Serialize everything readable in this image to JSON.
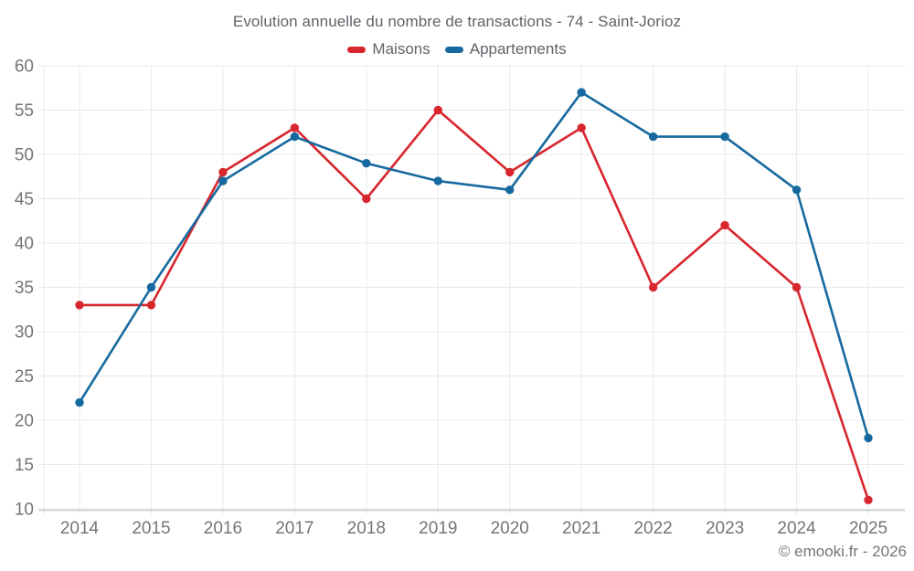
{
  "chart_data": {
    "type": "line",
    "title": "Evolution annuelle du nombre de transactions - 74 - Saint-Jorioz",
    "categories": [
      "2014",
      "2015",
      "2016",
      "2017",
      "2018",
      "2019",
      "2020",
      "2021",
      "2022",
      "2023",
      "2024",
      "2025"
    ],
    "series": [
      {
        "name": "Maisons",
        "color": "#d8262d",
        "values": [
          33,
          33,
          48,
          53,
          45,
          55,
          48,
          53,
          35,
          42,
          35,
          11
        ]
      },
      {
        "name": "Appartements",
        "color": "#16699f",
        "values": [
          22,
          35,
          47,
          52,
          49,
          47,
          46,
          57,
          52,
          52,
          46,
          18
        ]
      }
    ],
    "xlabel": "",
    "ylabel": "",
    "ylim": [
      10,
      60
    ],
    "ytick_step": 5,
    "grid": true,
    "legend_position": "top",
    "footer": "© emooki.fr - 2026",
    "colors": {
      "grid": "#e8e8e8",
      "axis": "#c9c9c9",
      "tick_text": "#757575",
      "title_text": "#5f6368"
    }
  }
}
